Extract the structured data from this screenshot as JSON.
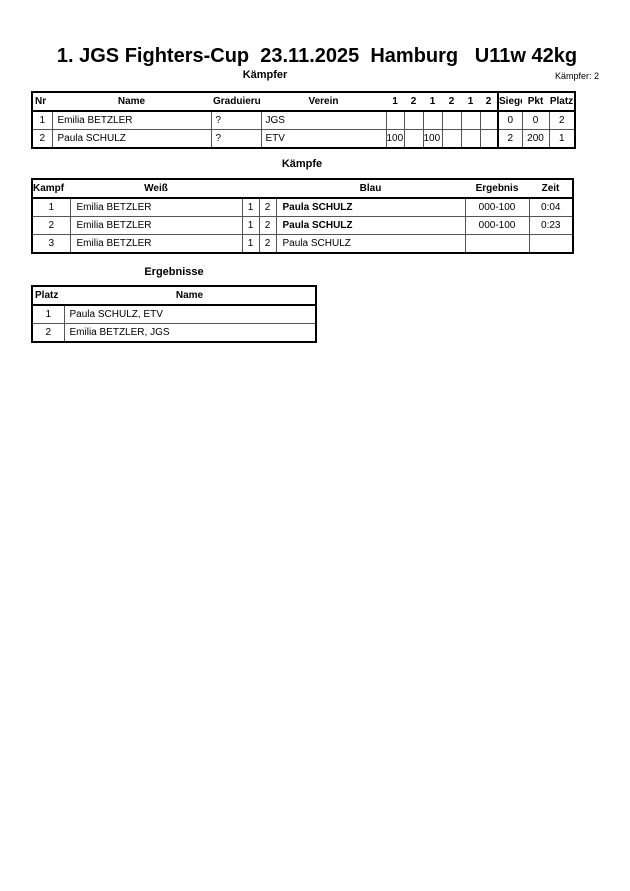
{
  "title": "1. JGS Fighters-Cup  23.11.2025  Hamburg   U11w 42kg",
  "fighters": {
    "heading": "Kämpfer",
    "count": "Kämpfer: 2",
    "headers": {
      "nr": "Nr",
      "name": "Name",
      "grad": "Graduierung",
      "verein": "Verein",
      "r": [
        "1",
        "2",
        "1",
        "2",
        "1",
        "2"
      ],
      "siege": "Siege",
      "pkt": "Pkt",
      "platz": "Platz"
    },
    "rows": [
      {
        "nr": "1",
        "name": "Emilia BETZLER",
        "grad": "?",
        "verein": "JGS",
        "r": [
          "",
          "",
          "",
          "",
          "",
          ""
        ],
        "siege": "0",
        "pkt": "0",
        "platz": "2"
      },
      {
        "nr": "2",
        "name": "Paula SCHULZ",
        "grad": "?",
        "verein": "ETV",
        "r": [
          "100",
          "",
          "100",
          "",
          "",
          ""
        ],
        "siege": "2",
        "pkt": "200",
        "platz": "1"
      }
    ]
  },
  "fights": {
    "heading": "Kämpfe",
    "headers": {
      "kampf": "Kampf",
      "weiss": "Weiß",
      "blau": "Blau",
      "ergebnis": "Ergebnis",
      "zeit": "Zeit"
    },
    "rows": [
      {
        "kampf": "1",
        "weiss": "Emilia BETZLER",
        "a": "1",
        "b": "2",
        "blau": "Paula SCHULZ",
        "blau_winner": true,
        "ergebnis": "000-100",
        "zeit": "0:04"
      },
      {
        "kampf": "2",
        "weiss": "Emilia BETZLER",
        "a": "1",
        "b": "2",
        "blau": "Paula SCHULZ",
        "blau_winner": true,
        "ergebnis": "000-100",
        "zeit": "0:23"
      },
      {
        "kampf": "3",
        "weiss": "Emilia BETZLER",
        "a": "1",
        "b": "2",
        "blau": "Paula SCHULZ",
        "blau_winner": false,
        "ergebnis": "",
        "zeit": ""
      }
    ]
  },
  "results": {
    "heading": "Ergebnisse",
    "headers": {
      "platz": "Platz",
      "name": "Name"
    },
    "rows": [
      {
        "platz": "1",
        "name": "Paula SCHULZ, ETV"
      },
      {
        "platz": "2",
        "name": "Emilia BETZLER, JGS"
      }
    ]
  }
}
